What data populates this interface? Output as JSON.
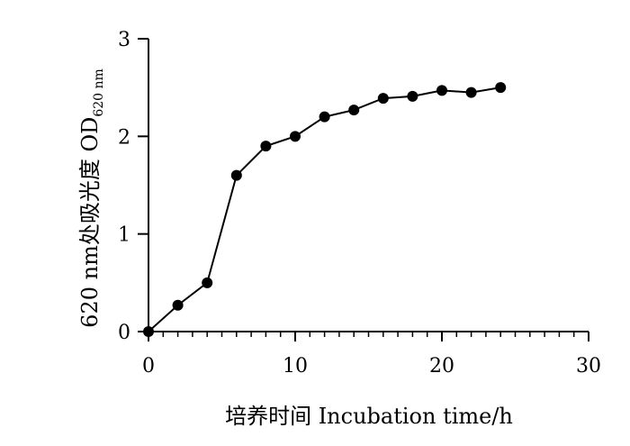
{
  "chart_data": {
    "type": "line",
    "xlabel": "培养时间  Incubation time/h",
    "ylabel_main": "620 nm处吸光度  OD",
    "ylabel_sub": "620 nm",
    "xlim": [
      0,
      30
    ],
    "ylim": [
      0,
      3
    ],
    "xticks": [
      0,
      10,
      20,
      30
    ],
    "yticks": [
      0,
      1,
      2,
      3
    ],
    "x_minor_step": 1,
    "grid": false,
    "series": [
      {
        "color": "#000000",
        "marker": "circle",
        "points": [
          {
            "x": 0,
            "y": 0.0
          },
          {
            "x": 2,
            "y": 0.27
          },
          {
            "x": 4,
            "y": 0.5
          },
          {
            "x": 6,
            "y": 1.6
          },
          {
            "x": 8,
            "y": 1.9
          },
          {
            "x": 10,
            "y": 2.0
          },
          {
            "x": 12,
            "y": 2.2
          },
          {
            "x": 14,
            "y": 2.27
          },
          {
            "x": 16,
            "y": 2.39
          },
          {
            "x": 18,
            "y": 2.41
          },
          {
            "x": 20,
            "y": 2.47
          },
          {
            "x": 22,
            "y": 2.45
          },
          {
            "x": 24,
            "y": 2.5
          }
        ]
      }
    ]
  }
}
